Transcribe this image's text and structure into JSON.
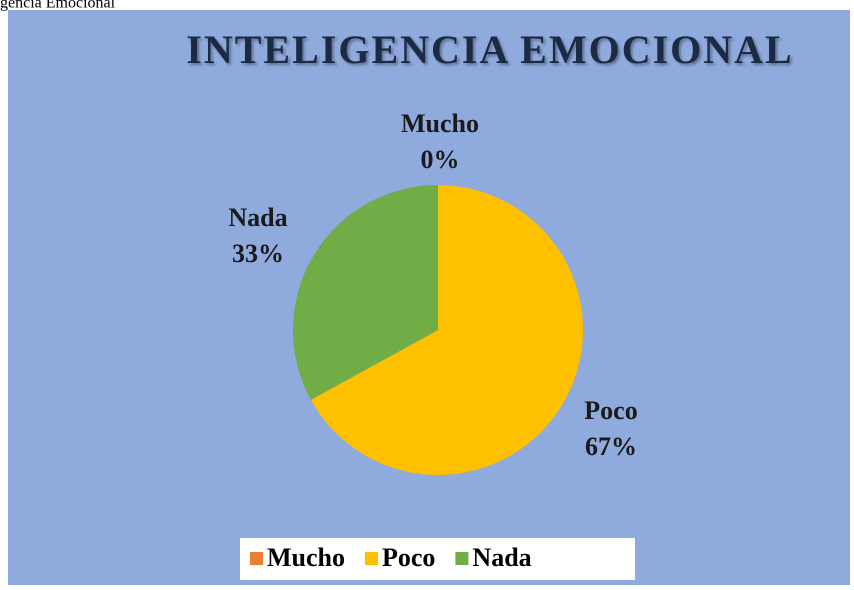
{
  "caption": "gencia Emocional",
  "chart_data": {
    "type": "pie",
    "title": "INTELIGENCIA EMOCIONAL",
    "categories": [
      "Mucho",
      "Poco",
      "Nada"
    ],
    "values": [
      0,
      67,
      33
    ],
    "value_labels": [
      "0%",
      "67%",
      "33%"
    ],
    "colors": [
      "#ed7d31",
      "#ffc000",
      "#70ad47"
    ],
    "legend": "bottom"
  }
}
